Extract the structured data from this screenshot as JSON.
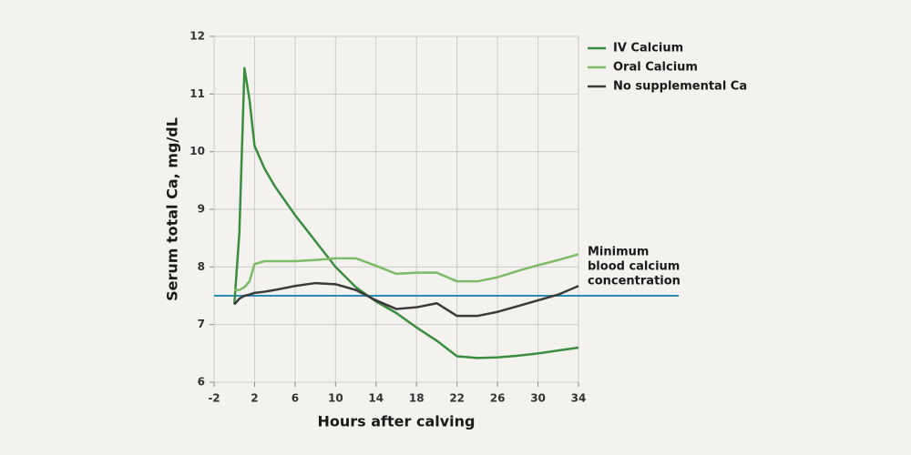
{
  "chart_data": {
    "type": "line",
    "xlabel": "Hours after calving",
    "ylabel": "Serum total Ca, mg/dL",
    "x": [
      0,
      0.5,
      1,
      1.5,
      2,
      3,
      4,
      6,
      8,
      10,
      12,
      14,
      16,
      18,
      20,
      22,
      24,
      26,
      28,
      30,
      32,
      34
    ],
    "series": [
      {
        "name": "IV Calcium",
        "color": "#3a8d3e",
        "values": [
          7.35,
          8.6,
          11.45,
          10.9,
          10.1,
          9.7,
          9.4,
          8.9,
          8.45,
          8.0,
          7.65,
          7.4,
          7.2,
          6.95,
          6.72,
          6.45,
          6.42,
          6.43,
          6.46,
          6.5,
          6.55,
          6.6
        ]
      },
      {
        "name": "Oral Calcium",
        "color": "#7dbb68",
        "values": [
          7.6,
          7.6,
          7.65,
          7.75,
          8.05,
          8.1,
          8.1,
          8.1,
          8.12,
          8.15,
          8.15,
          8.02,
          7.88,
          7.9,
          7.9,
          7.75,
          7.75,
          7.82,
          7.93,
          8.03,
          8.12,
          8.22
        ]
      },
      {
        "name": "No supplemental Ca",
        "color": "#3a3a3a",
        "values": [
          7.35,
          7.45,
          7.5,
          7.52,
          7.55,
          7.57,
          7.6,
          7.67,
          7.72,
          7.7,
          7.6,
          7.42,
          7.27,
          7.3,
          7.37,
          7.15,
          7.15,
          7.22,
          7.32,
          7.42,
          7.52,
          7.67
        ]
      }
    ],
    "reference_line": {
      "value": 7.5,
      "color": "#2a8bb3",
      "label": [
        "Minimum",
        "blood calcium",
        "concentration"
      ]
    },
    "xlim": [
      -2,
      34
    ],
    "xticks": [
      -2,
      2,
      6,
      10,
      14,
      18,
      22,
      26,
      30,
      34
    ],
    "ylim": [
      6,
      12
    ],
    "yticks": [
      6,
      7,
      8,
      9,
      10,
      11,
      12
    ],
    "grid": true
  }
}
